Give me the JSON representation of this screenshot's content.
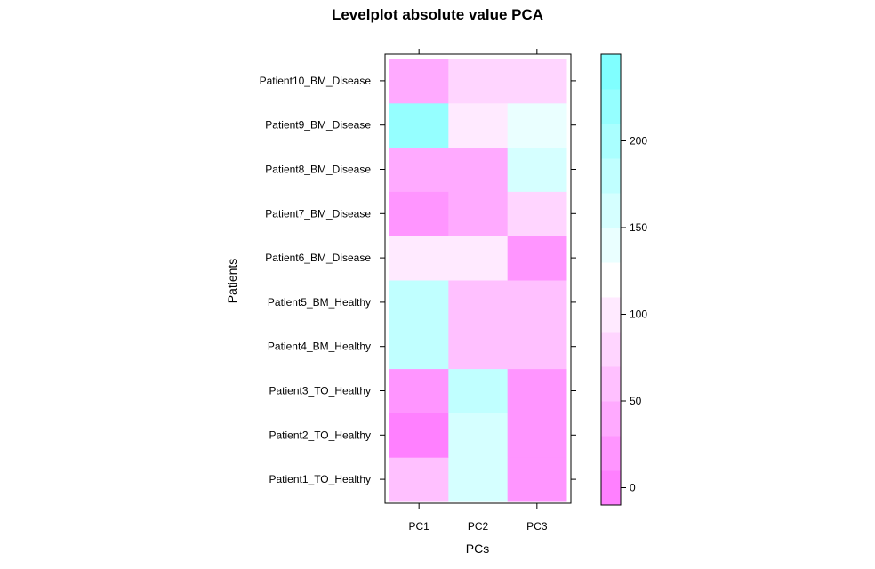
{
  "chart_data": {
    "type": "heatmap",
    "title": "Levelplot absolute value PCA",
    "xlabel": "PCs",
    "ylabel": "Patients",
    "x_categories": [
      "PC1",
      "PC2",
      "PC3"
    ],
    "y_categories": [
      "Patient1_TO_Healthy",
      "Patient2_TO_Healthy",
      "Patient3_TO_Healthy",
      "Patient4_BM_Healthy",
      "Patient5_BM_Healthy",
      "Patient6_BM_Disease",
      "Patient7_BM_Disease",
      "Patient8_BM_Disease",
      "Patient9_BM_Disease",
      "Patient10_BM_Disease"
    ],
    "values": [
      [
        55,
        170,
        20
      ],
      [
        10,
        160,
        25
      ],
      [
        30,
        180,
        20
      ],
      [
        180,
        70,
        70
      ],
      [
        185,
        70,
        70
      ],
      [
        110,
        95,
        25
      ],
      [
        30,
        40,
        75
      ],
      [
        40,
        50,
        165
      ],
      [
        225,
        105,
        140
      ],
      [
        40,
        85,
        75
      ]
    ],
    "colorbar": {
      "range": [
        -10,
        250
      ],
      "ticks": [
        0,
        50,
        100,
        150,
        200
      ],
      "low_color": "#ff80ff",
      "mid_color": "#ffffff",
      "high_color": "#80ffff",
      "breaks": [
        -10,
        10,
        30,
        50,
        70,
        90,
        110,
        130,
        150,
        170,
        190,
        210,
        230,
        250
      ]
    }
  }
}
